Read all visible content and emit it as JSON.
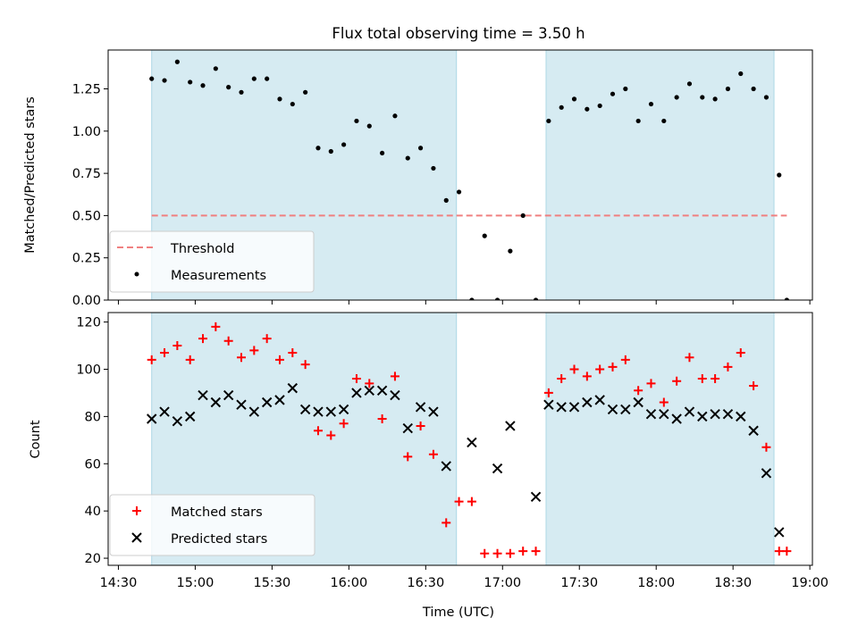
{
  "chart_data": [
    {
      "type": "scatter",
      "title": "Flux total observing time = 3.50 h",
      "xlabel": "",
      "ylabel": "Matched/Predicted stars",
      "xlim": [
        "14:26",
        "19:01"
      ],
      "ylim": [
        0,
        1.48
      ],
      "yticks": [
        0.0,
        0.25,
        0.5,
        0.75,
        1.0,
        1.25
      ],
      "ytick_labels": [
        "0.00",
        "0.25",
        "0.50",
        "0.75",
        "1.00",
        "1.25"
      ],
      "grid": false,
      "legend_position": "lower-left",
      "shaded_intervals": [
        [
          "14:43",
          "16:42"
        ],
        [
          "17:17",
          "18:46"
        ]
      ],
      "series": [
        {
          "name": "Threshold",
          "style": "dashed-line",
          "color": "#f08080",
          "x": [
            "14:43",
            "18:51"
          ],
          "y": [
            0.5,
            0.5
          ]
        },
        {
          "name": "Measurements",
          "style": "dot",
          "color": "#000000",
          "x": [
            "14:43",
            "14:48",
            "14:53",
            "14:58",
            "15:03",
            "15:08",
            "15:13",
            "15:18",
            "15:23",
            "15:28",
            "15:33",
            "15:38",
            "15:43",
            "15:48",
            "15:53",
            "15:58",
            "16:03",
            "16:08",
            "16:13",
            "16:18",
            "16:23",
            "16:28",
            "16:33",
            "16:38",
            "16:43",
            "16:48",
            "16:53",
            "16:58",
            "17:03",
            "17:08",
            "17:13",
            "17:18",
            "17:23",
            "17:28",
            "17:33",
            "17:38",
            "17:43",
            "17:48",
            "17:53",
            "17:58",
            "18:03",
            "18:08",
            "18:13",
            "18:18",
            "18:23",
            "18:28",
            "18:33",
            "18:38",
            "18:43",
            "18:48"
          ],
          "y": [
            1.31,
            1.3,
            1.41,
            1.29,
            1.27,
            1.37,
            1.26,
            1.23,
            1.31,
            1.31,
            1.19,
            1.16,
            1.23,
            0.9,
            0.88,
            0.92,
            1.06,
            1.03,
            0.87,
            1.09,
            0.84,
            0.9,
            0.78,
            0.59,
            0.64,
            0.0,
            0.38,
            0.0,
            0.29,
            0.5,
            0.0,
            1.06,
            1.14,
            1.19,
            1.13,
            1.15,
            1.22,
            1.25,
            1.06,
            1.16,
            1.06,
            1.2,
            1.28,
            1.2,
            1.19,
            1.25,
            1.34,
            1.25,
            1.2,
            0.74
          ],
          "extra_points": [
            {
              "x": "18:51",
              "y": 0.0
            }
          ]
        }
      ]
    },
    {
      "type": "scatter",
      "title": "",
      "xlabel": "Time (UTC)",
      "ylabel": "Count",
      "xlim": [
        "14:26",
        "19:01"
      ],
      "ylim": [
        17,
        124
      ],
      "yticks": [
        20,
        40,
        60,
        80,
        100,
        120
      ],
      "ytick_labels": [
        "20",
        "40",
        "60",
        "80",
        "100",
        "120"
      ],
      "xticks": [
        "14:30",
        "15:00",
        "15:30",
        "16:00",
        "16:30",
        "17:00",
        "17:30",
        "18:00",
        "18:30",
        "19:00"
      ],
      "xtick_labels": [
        "14:30",
        "15:00",
        "15:30",
        "16:00",
        "16:30",
        "17:00",
        "17:30",
        "18:00",
        "18:30",
        "19:00"
      ],
      "grid": false,
      "legend_position": "lower-left",
      "shaded_intervals": [
        [
          "14:43",
          "16:42"
        ],
        [
          "17:17",
          "18:46"
        ]
      ],
      "series": [
        {
          "name": "Matched stars",
          "marker": "plus",
          "color": "#ff0000",
          "x": [
            "14:43",
            "14:48",
            "14:53",
            "14:58",
            "15:03",
            "15:08",
            "15:13",
            "15:18",
            "15:23",
            "15:28",
            "15:33",
            "15:38",
            "15:43",
            "15:48",
            "15:53",
            "15:58",
            "16:03",
            "16:08",
            "16:13",
            "16:18",
            "16:23",
            "16:28",
            "16:33",
            "16:38",
            "16:43",
            "16:48",
            "16:53",
            "16:58",
            "17:03",
            "17:08",
            "17:13",
            "17:18",
            "17:23",
            "17:28",
            "17:33",
            "17:38",
            "17:43",
            "17:48",
            "17:53",
            "17:58",
            "18:03",
            "18:08",
            "18:13",
            "18:18",
            "18:23",
            "18:28",
            "18:33",
            "18:38",
            "18:43",
            "18:48",
            "18:51"
          ],
          "y": [
            104,
            107,
            110,
            104,
            113,
            118,
            112,
            105,
            108,
            113,
            104,
            107,
            102,
            74,
            72,
            77,
            96,
            94,
            79,
            97,
            63,
            76,
            64,
            35,
            44,
            44,
            22,
            22,
            22,
            23,
            23,
            90,
            96,
            100,
            97,
            100,
            101,
            104,
            91,
            94,
            86,
            95,
            105,
            96,
            96,
            101,
            107,
            93,
            67,
            23,
            23
          ]
        },
        {
          "name": "Predicted stars",
          "marker": "x",
          "color": "#000000",
          "x": [
            "14:43",
            "14:48",
            "14:53",
            "14:58",
            "15:03",
            "15:08",
            "15:13",
            "15:18",
            "15:23",
            "15:28",
            "15:33",
            "15:38",
            "15:43",
            "15:48",
            "15:53",
            "15:58",
            "16:03",
            "16:08",
            "16:13",
            "16:18",
            "16:23",
            "16:28",
            "16:33",
            "16:38",
            "16:48",
            "16:58",
            "17:03",
            "17:13",
            "17:18",
            "17:23",
            "17:28",
            "17:33",
            "17:38",
            "17:43",
            "17:48",
            "17:53",
            "17:58",
            "18:03",
            "18:08",
            "18:13",
            "18:18",
            "18:23",
            "18:28",
            "18:33",
            "18:38",
            "18:43",
            "18:48"
          ],
          "y": [
            79,
            82,
            78,
            80,
            89,
            86,
            89,
            85,
            82,
            86,
            87,
            92,
            83,
            82,
            82,
            83,
            90,
            91,
            91,
            89,
            75,
            84,
            82,
            59,
            69,
            58,
            76,
            46,
            85,
            84,
            84,
            86,
            87,
            83,
            83,
            86,
            81,
            81,
            79,
            82,
            80,
            81,
            81,
            80,
            74,
            56,
            31
          ]
        }
      ]
    }
  ]
}
